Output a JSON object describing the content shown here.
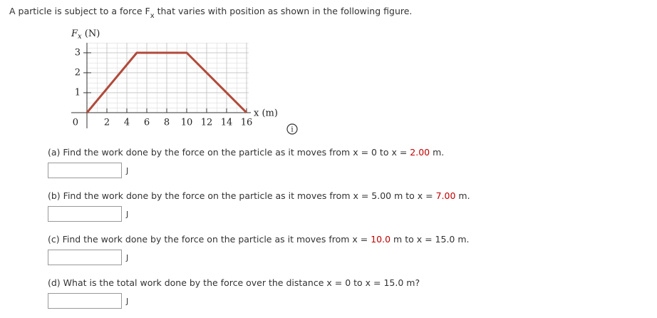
{
  "intro": [
    "A particle is subject to a force F",
    "x",
    " that varies with position as shown in the following figure."
  ],
  "chart_data": {
    "type": "line",
    "y_label": [
      "F",
      "x",
      " (N)"
    ],
    "x_label": "x (m)",
    "x": [
      0,
      5,
      10,
      16
    ],
    "values": [
      0,
      3,
      3,
      0
    ],
    "color": "#b04a3a",
    "xlim": [
      0,
      16
    ],
    "ylim": [
      0,
      3.5
    ],
    "xticks": [
      0,
      2,
      4,
      6,
      8,
      10,
      12,
      14,
      16
    ],
    "yticks": [
      1,
      2,
      3
    ],
    "grid": true
  },
  "questions": [
    {
      "parts": [
        "(a) Find the work done by the force on the particle as it moves from x = 0 to x = ",
        "2.00",
        " m."
      ],
      "unit": "J"
    },
    {
      "parts": [
        "(b) Find the work done by the force on the particle as it moves from x = 5.00 m to x = ",
        "7.00",
        " m."
      ],
      "unit": "J"
    },
    {
      "parts": [
        "(c) Find the work done by the force on the particle as it moves from x = ",
        "10.0",
        " m to x = 15.0 m."
      ],
      "unit": "J"
    },
    {
      "parts": [
        "(d) What is the total work done by the force over the distance x = 0 to x = 15.0 m?"
      ],
      "unit": "J"
    }
  ]
}
